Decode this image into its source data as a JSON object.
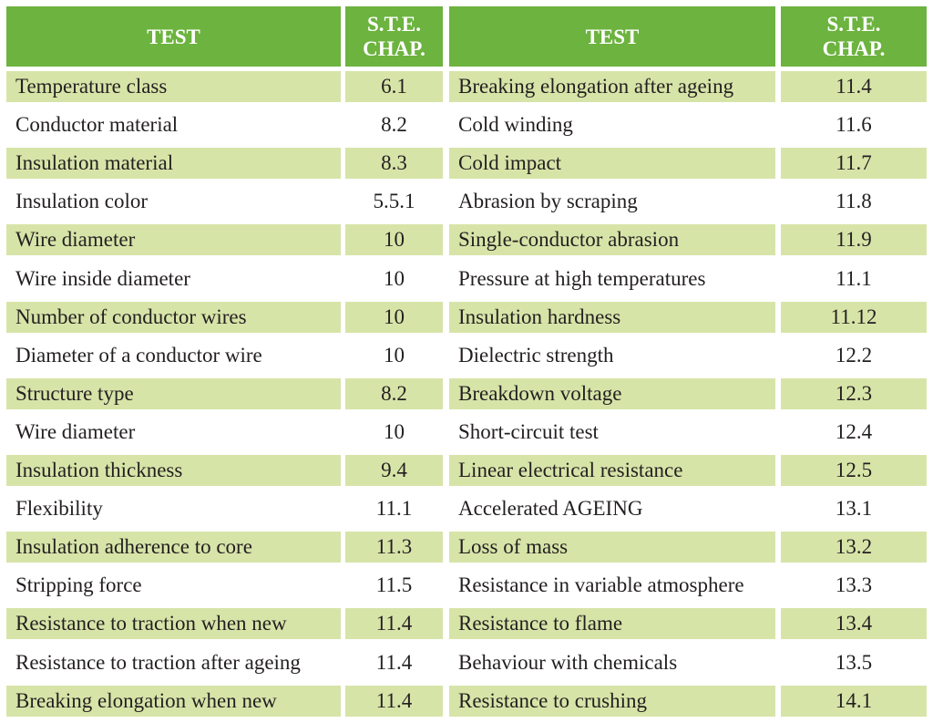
{
  "headers": {
    "test": "TEST",
    "chap_line1": "S.T.E.",
    "chap_line2": "CHAP."
  },
  "left_rows": [
    {
      "test": "Temperature class",
      "chap": "6.1"
    },
    {
      "test": "Conductor material",
      "chap": "8.2"
    },
    {
      "test": "Insulation material",
      "chap": "8.3"
    },
    {
      "test": "Insulation color",
      "chap": "5.5.1"
    },
    {
      "test": "Wire diameter",
      "chap": "10"
    },
    {
      "test": "Wire inside diameter",
      "chap": "10"
    },
    {
      "test": "Number of conductor wires",
      "chap": "10"
    },
    {
      "test": "Diameter of a conductor wire",
      "chap": "10"
    },
    {
      "test": "Structure type",
      "chap": "8.2"
    },
    {
      "test": "Wire diameter",
      "chap": "10"
    },
    {
      "test": "Insulation thickness",
      "chap": "9.4"
    },
    {
      "test": "Flexibility",
      "chap": "11.1"
    },
    {
      "test": "Insulation adherence to core",
      "chap": "11.3"
    },
    {
      "test": "Stripping force",
      "chap": "11.5"
    },
    {
      "test": "Resistance to traction when new",
      "chap": "11.4"
    },
    {
      "test": "Resistance to traction after ageing",
      "chap": "11.4"
    },
    {
      "test": "Breaking elongation when new",
      "chap": "11.4"
    }
  ],
  "right_rows": [
    {
      "test": "Breaking elongation after ageing",
      "chap": "11.4"
    },
    {
      "test": "Cold winding",
      "chap": "11.6"
    },
    {
      "test": "Cold impact",
      "chap": "11.7"
    },
    {
      "test": "Abrasion by scraping",
      "chap": "11.8"
    },
    {
      "test": "Single-conductor abrasion",
      "chap": "11.9"
    },
    {
      "test": "Pressure at high temperatures",
      "chap": "11.1"
    },
    {
      "test": "Insulation hardness",
      "chap": "11.12"
    },
    {
      "test": "Dielectric strength",
      "chap": "12.2"
    },
    {
      "test": "Breakdown voltage",
      "chap": "12.3"
    },
    {
      "test": "Short-circuit test",
      "chap": "12.4"
    },
    {
      "test": "Linear electrical resistance",
      "chap": "12.5"
    },
    {
      "test": "Accelerated AGEING",
      "chap": "13.1"
    },
    {
      "test": "Loss of mass",
      "chap": "13.2"
    },
    {
      "test": "Resistance in variable atmosphere",
      "chap": "13.3"
    },
    {
      "test": "Resistance to flame",
      "chap": "13.4"
    },
    {
      "test": "Behaviour with chemicals",
      "chap": "13.5"
    },
    {
      "test": "Resistance to crushing",
      "chap": "14.1"
    }
  ],
  "colors": {
    "header_green": "#6cb33f",
    "row_shade": "#d7e4a8",
    "text": "#231f20"
  }
}
